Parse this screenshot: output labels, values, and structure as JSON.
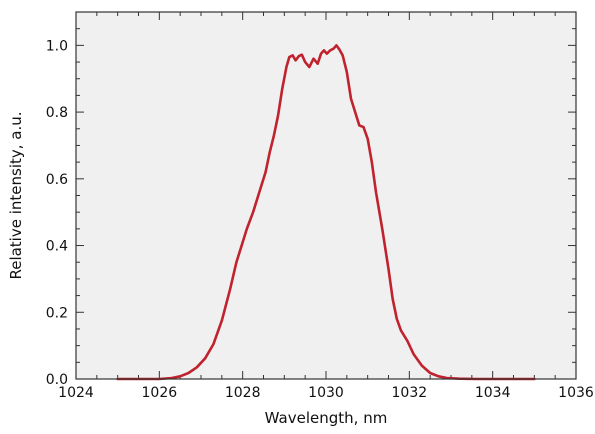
{
  "chart_data": {
    "type": "line",
    "title": "",
    "xlabel": "Wavelength, nm",
    "ylabel": "Relative intensity, a.u.",
    "xlim": [
      1024,
      1036
    ],
    "ylim": [
      0.0,
      1.1
    ],
    "x_ticks": [
      "1024",
      "1026",
      "1028",
      "1030",
      "1032",
      "1034",
      "1036"
    ],
    "y_ticks": [
      "0.0",
      "0.2",
      "0.4",
      "0.6",
      "0.8",
      "1.0"
    ],
    "grid": false,
    "legend": "none",
    "plot_background": "#f0f0f0",
    "series": [
      {
        "color": "#c0222e",
        "points": [
          [
            1025.0,
            0.0
          ],
          [
            1025.5,
            0.0
          ],
          [
            1026.0,
            0.0
          ],
          [
            1026.3,
            0.003
          ],
          [
            1026.5,
            0.008
          ],
          [
            1026.7,
            0.018
          ],
          [
            1026.9,
            0.035
          ],
          [
            1027.1,
            0.062
          ],
          [
            1027.3,
            0.105
          ],
          [
            1027.5,
            0.175
          ],
          [
            1027.7,
            0.27
          ],
          [
            1027.85,
            0.35
          ],
          [
            1028.0,
            0.41
          ],
          [
            1028.1,
            0.45
          ],
          [
            1028.25,
            0.5
          ],
          [
            1028.4,
            0.56
          ],
          [
            1028.55,
            0.62
          ],
          [
            1028.65,
            0.68
          ],
          [
            1028.75,
            0.73
          ],
          [
            1028.85,
            0.79
          ],
          [
            1028.95,
            0.87
          ],
          [
            1029.05,
            0.935
          ],
          [
            1029.12,
            0.965
          ],
          [
            1029.2,
            0.97
          ],
          [
            1029.27,
            0.955
          ],
          [
            1029.35,
            0.968
          ],
          [
            1029.42,
            0.972
          ],
          [
            1029.5,
            0.95
          ],
          [
            1029.6,
            0.935
          ],
          [
            1029.7,
            0.96
          ],
          [
            1029.8,
            0.945
          ],
          [
            1029.88,
            0.975
          ],
          [
            1029.95,
            0.985
          ],
          [
            1030.02,
            0.975
          ],
          [
            1030.1,
            0.985
          ],
          [
            1030.18,
            0.99
          ],
          [
            1030.25,
            1.0
          ],
          [
            1030.32,
            0.988
          ],
          [
            1030.4,
            0.97
          ],
          [
            1030.5,
            0.92
          ],
          [
            1030.6,
            0.84
          ],
          [
            1030.7,
            0.8
          ],
          [
            1030.8,
            0.76
          ],
          [
            1030.9,
            0.755
          ],
          [
            1031.0,
            0.72
          ],
          [
            1031.1,
            0.65
          ],
          [
            1031.2,
            0.56
          ],
          [
            1031.35,
            0.45
          ],
          [
            1031.5,
            0.33
          ],
          [
            1031.6,
            0.24
          ],
          [
            1031.7,
            0.18
          ],
          [
            1031.8,
            0.145
          ],
          [
            1031.95,
            0.115
          ],
          [
            1032.1,
            0.075
          ],
          [
            1032.3,
            0.04
          ],
          [
            1032.5,
            0.018
          ],
          [
            1032.7,
            0.008
          ],
          [
            1032.9,
            0.003
          ],
          [
            1033.2,
            0.001
          ],
          [
            1033.6,
            0.0
          ],
          [
            1034.0,
            0.0
          ],
          [
            1034.5,
            0.0
          ],
          [
            1035.0,
            0.0
          ]
        ]
      }
    ]
  }
}
